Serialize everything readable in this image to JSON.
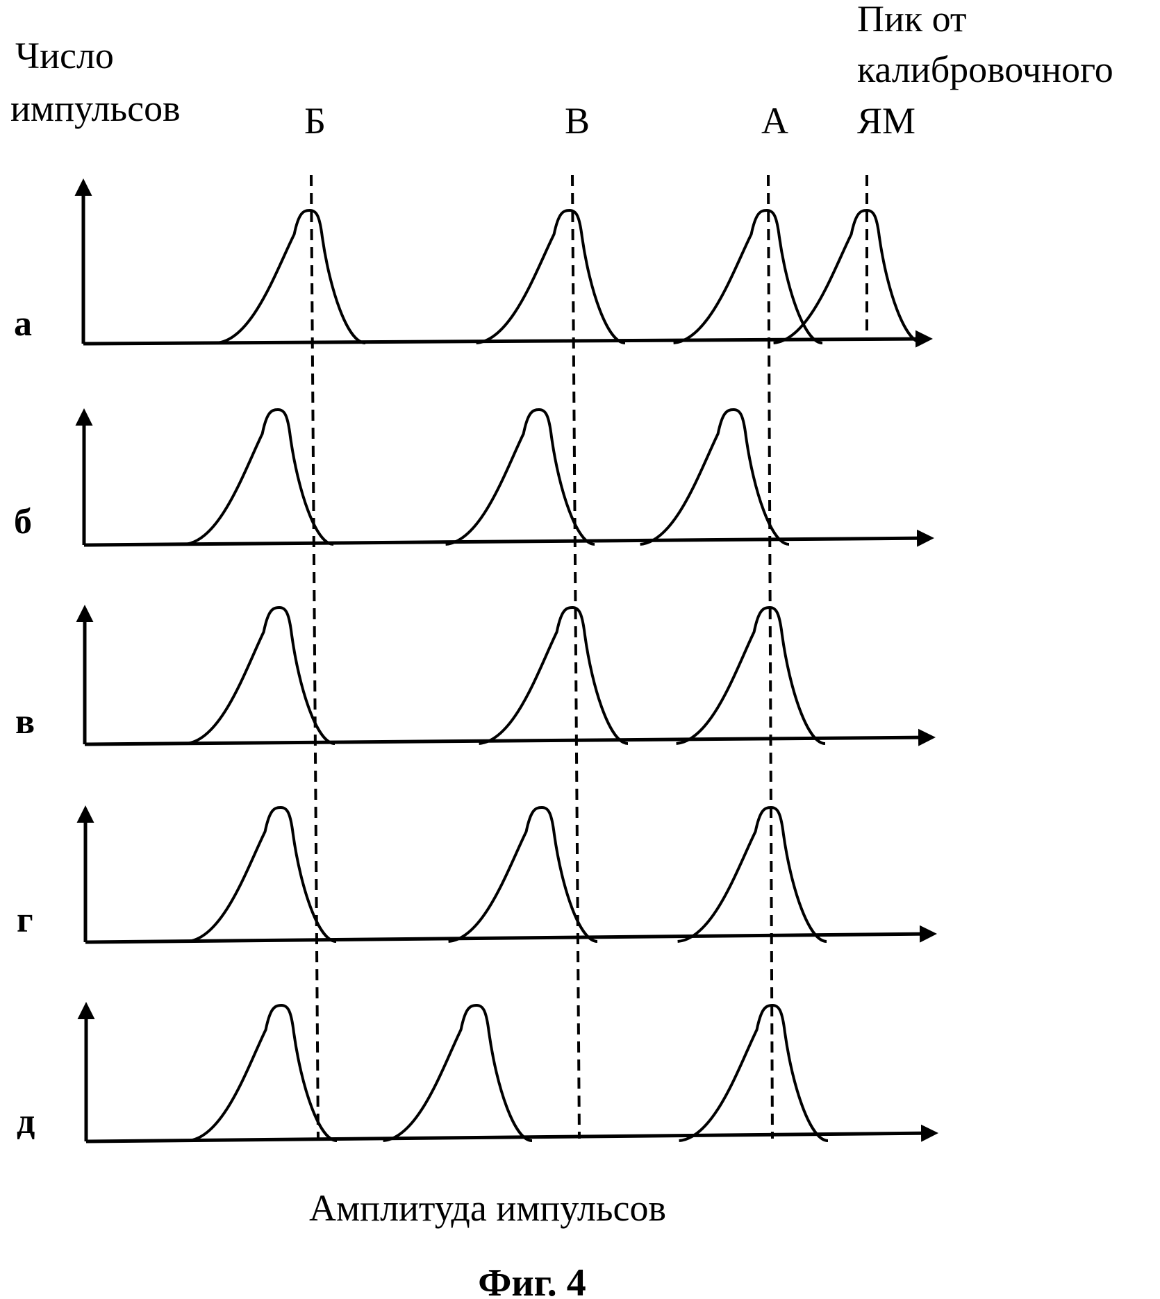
{
  "y_axis_label": [
    "Число",
    "импульсов"
  ],
  "x_axis_label": "Амплитуда импульсов",
  "caption": "Фиг. 4",
  "calibration_label": [
    "Пик от",
    "калибровочного",
    "ЯМ"
  ],
  "reference_lines": [
    {
      "label": "Б"
    },
    {
      "label": "В"
    },
    {
      "label": "А"
    }
  ],
  "rows": [
    {
      "label": "а",
      "peaks": [
        "Б",
        "В",
        "А",
        "ЯМ"
      ]
    },
    {
      "label": "б",
      "peaks": [
        "Б",
        "В",
        "А"
      ]
    },
    {
      "label": "в",
      "peaks": [
        "Б",
        "В",
        "А"
      ]
    },
    {
      "label": "г",
      "peaks": [
        "Б",
        "В",
        "А"
      ]
    },
    {
      "label": "д",
      "peaks": [
        "Б",
        "В",
        "А"
      ]
    }
  ]
}
